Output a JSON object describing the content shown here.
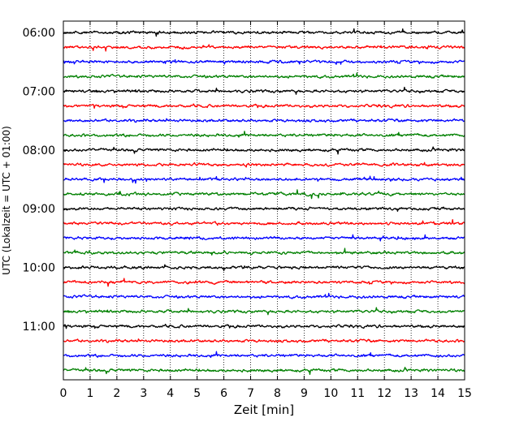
{
  "chart_data": {
    "type": "line",
    "title": "",
    "xlabel": "Zeit  [min]",
    "ylabel": "UTC (Lokalzeit = UTC + 01:00)",
    "xlim": [
      0,
      15
    ],
    "x_ticks": [
      "0",
      "1",
      "2",
      "3",
      "4",
      "5",
      "6",
      "7",
      "8",
      "9",
      "10",
      "11",
      "12",
      "13",
      "14",
      "15"
    ],
    "y_ticks": [
      "06:00",
      "07:00",
      "08:00",
      "09:00",
      "10:00",
      "11:00"
    ],
    "grid": "vertical dotted lines at each minute",
    "trace_interval_minutes": 15,
    "trace_color_cycle": [
      "#000000",
      "#ff0000",
      "#0000ff",
      "#008000"
    ],
    "series": [
      {
        "start": "06:00"
      },
      {
        "start": "06:15"
      },
      {
        "start": "06:30"
      },
      {
        "start": "06:45"
      },
      {
        "start": "07:00"
      },
      {
        "start": "07:15"
      },
      {
        "start": "07:30"
      },
      {
        "start": "07:45"
      },
      {
        "start": "08:00"
      },
      {
        "start": "08:15"
      },
      {
        "start": "08:30"
      },
      {
        "start": "08:45"
      },
      {
        "start": "09:00"
      },
      {
        "start": "09:15"
      },
      {
        "start": "09:30"
      },
      {
        "start": "09:45"
      },
      {
        "start": "10:00"
      },
      {
        "start": "10:15"
      },
      {
        "start": "10:30"
      },
      {
        "start": "10:45"
      },
      {
        "start": "11:00"
      },
      {
        "start": "11:15"
      },
      {
        "start": "11:30"
      },
      {
        "start": "11:45"
      }
    ]
  }
}
